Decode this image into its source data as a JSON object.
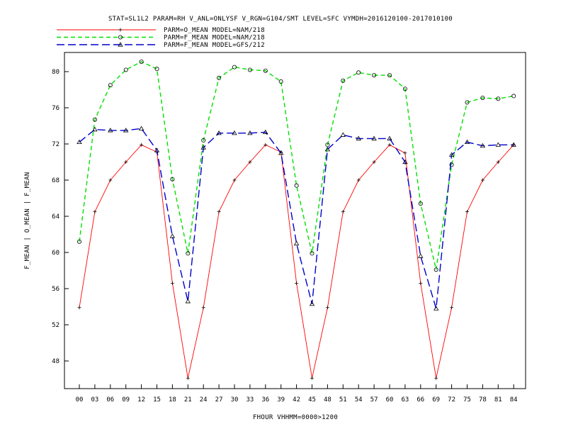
{
  "chart_data": {
    "type": "line",
    "title": "STAT=SL1L2 PARAM=RH V_ANL=ONLYSF V_RGN=G104/SMT LEVEL=SFC VYMDH=2016120100-2017010100",
    "xlabel": "FHOUR VHHMM=0000>1200",
    "ylabel": "F_MEAN | O_MEAN | F_MEAN",
    "categories": [
      "00",
      "03",
      "06",
      "09",
      "12",
      "15",
      "18",
      "21",
      "24",
      "27",
      "30",
      "33",
      "36",
      "39",
      "42",
      "45",
      "48",
      "51",
      "54",
      "57",
      "60",
      "63",
      "66",
      "69",
      "72",
      "75",
      "78",
      "81",
      "84"
    ],
    "ylim": [
      45,
      83
    ],
    "yticks": [
      48,
      52,
      56,
      60,
      64,
      68,
      72,
      76,
      80
    ],
    "ytick_labels": [
      "48",
      "52",
      "56",
      "60",
      "64",
      "68",
      "72",
      "76",
      "80"
    ],
    "grid": false,
    "legend_position": "top-left",
    "series": [
      {
        "name": "PARM=O_MEAN MODEL=NAM/218",
        "color": "#ff0000",
        "dash": "solid",
        "marker": "plus",
        "values": [
          53.9,
          64.5,
          68.0,
          70.0,
          71.9,
          71.1,
          56.6,
          46.1,
          53.9,
          64.5,
          68.0,
          70.0,
          71.9,
          71.1,
          56.6,
          46.1,
          53.9,
          64.5,
          68.0,
          70.0,
          71.9,
          71.0,
          56.6,
          46.1,
          53.9,
          64.5,
          68.0,
          70.0,
          71.9
        ]
      },
      {
        "name": "PARM=F_MEAN MODEL=NAM/218",
        "color": "#00e000",
        "dash": "dashed",
        "marker": "circle",
        "values": [
          61.2,
          74.7,
          78.5,
          80.2,
          81.1,
          80.3,
          68.1,
          59.9,
          72.4,
          79.3,
          80.5,
          80.2,
          80.1,
          78.9,
          67.4,
          59.9,
          71.9,
          79.0,
          79.9,
          79.6,
          79.6,
          78.1,
          65.4,
          58.1,
          69.7,
          76.6,
          77.1,
          77.0,
          77.3
        ]
      },
      {
        "name": "PARM=F_MEAN MODEL=GFS/212",
        "color": "#0000cc",
        "dash": "longdash",
        "marker": "triangle",
        "values": [
          72.2,
          73.6,
          73.5,
          73.5,
          73.7,
          71.3,
          61.8,
          54.6,
          71.6,
          73.2,
          73.2,
          73.2,
          73.3,
          71.0,
          61.0,
          54.3,
          71.4,
          73.0,
          72.6,
          72.6,
          72.6,
          70.0,
          59.6,
          53.8,
          70.8,
          72.2,
          71.8,
          71.9,
          71.9
        ]
      }
    ]
  }
}
